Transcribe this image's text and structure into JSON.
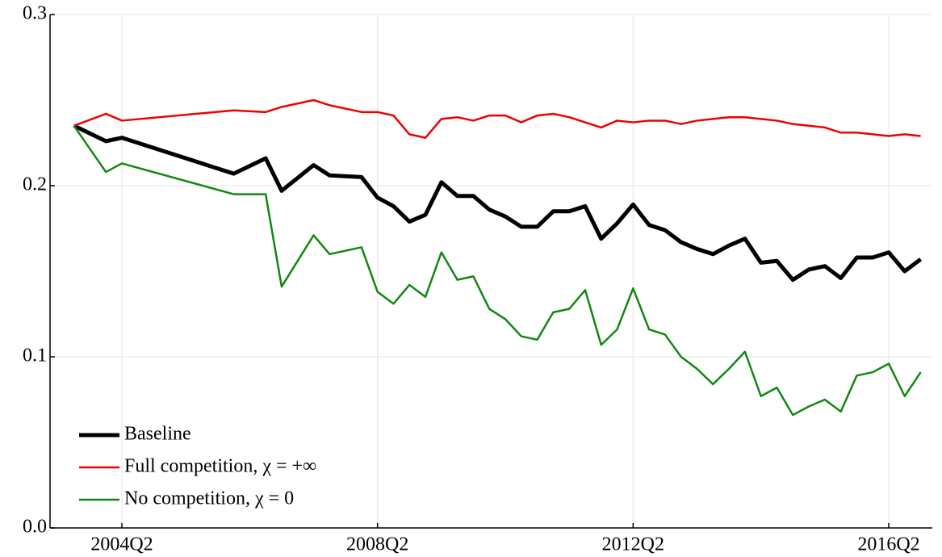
{
  "chart_data": {
    "type": "line",
    "x": [
      "2003Q3",
      "2004Q1",
      "2004Q2",
      "2006Q1",
      "2006Q3",
      "2006Q4",
      "2007Q2",
      "2007Q3",
      "2008Q1",
      "2008Q2",
      "2008Q3",
      "2008Q4",
      "2009Q1",
      "2009Q2",
      "2009Q3",
      "2009Q4",
      "2010Q1",
      "2010Q2",
      "2010Q3",
      "2010Q4",
      "2011Q1",
      "2011Q2",
      "2011Q3",
      "2011Q4",
      "2012Q1",
      "2012Q2",
      "2012Q3",
      "2012Q4",
      "2013Q1",
      "2013Q2",
      "2013Q3",
      "2013Q4",
      "2014Q1",
      "2014Q2",
      "2014Q3",
      "2014Q4",
      "2015Q1",
      "2015Q2",
      "2015Q3",
      "2015Q4",
      "2016Q1",
      "2016Q2",
      "2016Q3",
      "2016Q4"
    ],
    "series": [
      {
        "name": "Baseline",
        "color": "#000000",
        "width": 5,
        "values": [
          0.235,
          0.226,
          0.228,
          0.207,
          0.216,
          0.197,
          0.212,
          0.206,
          0.205,
          0.193,
          0.188,
          0.179,
          0.183,
          0.202,
          0.194,
          0.194,
          0.186,
          0.182,
          0.176,
          0.176,
          0.185,
          0.185,
          0.188,
          0.169,
          0.178,
          0.189,
          0.177,
          0.174,
          0.167,
          0.163,
          0.16,
          0.165,
          0.169,
          0.155,
          0.156,
          0.145,
          0.151,
          0.153,
          0.146,
          0.158,
          0.158,
          0.161,
          0.15,
          0.157
        ]
      },
      {
        "name": "Full competition, χ = +∞",
        "color": "#ee0000",
        "width": 2.5,
        "values": [
          0.235,
          0.242,
          0.238,
          0.244,
          0.243,
          0.246,
          0.25,
          0.247,
          0.243,
          0.243,
          0.241,
          0.23,
          0.228,
          0.239,
          0.24,
          0.238,
          0.241,
          0.241,
          0.237,
          0.241,
          0.242,
          0.24,
          0.237,
          0.234,
          0.238,
          0.237,
          0.238,
          0.238,
          0.236,
          0.238,
          0.239,
          0.24,
          0.24,
          0.239,
          0.238,
          0.236,
          0.235,
          0.234,
          0.231,
          0.231,
          0.23,
          0.229,
          0.23,
          0.229
        ]
      },
      {
        "name": "No competition, χ = 0",
        "color": "#118811",
        "width": 2.5,
        "values": [
          0.235,
          0.208,
          0.213,
          0.195,
          0.195,
          0.141,
          0.171,
          0.16,
          0.164,
          0.138,
          0.131,
          0.142,
          0.135,
          0.161,
          0.145,
          0.147,
          0.128,
          0.122,
          0.112,
          0.11,
          0.126,
          0.128,
          0.139,
          0.107,
          0.116,
          0.14,
          0.116,
          0.113,
          0.1,
          0.093,
          0.084,
          0.093,
          0.103,
          0.077,
          0.082,
          0.066,
          0.071,
          0.075,
          0.068,
          0.089,
          0.091,
          0.096,
          0.077,
          0.091
        ]
      }
    ],
    "ylim": [
      0,
      0.3
    ],
    "yticks": [
      {
        "value": 0,
        "label": "0.0"
      },
      0.1,
      0.2,
      0.3
    ],
    "xticks": [
      "2004Q2",
      "2008Q2",
      "2012Q2",
      "2016Q2"
    ],
    "grid": true,
    "legend": "lower left"
  }
}
